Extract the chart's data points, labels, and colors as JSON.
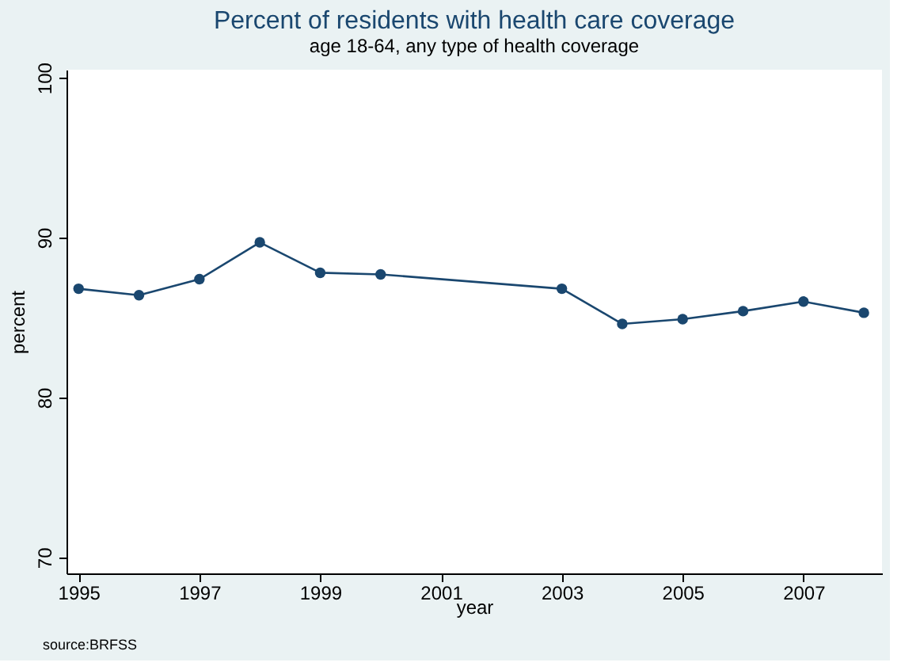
{
  "chart_data": {
    "type": "line",
    "title": "Percent of residents with health care coverage",
    "subtitle": "age 18-64, any type of health coverage",
    "xlabel": "year",
    "ylabel": "percent",
    "x": [
      1995,
      1996,
      1997,
      1998,
      1999,
      2000,
      2003,
      2004,
      2005,
      2006,
      2007,
      2008
    ],
    "series": [
      {
        "color": "#1a476f",
        "values": [
          86.8,
          86.4,
          87.4,
          89.7,
          87.8,
          87.7,
          86.8,
          84.6,
          84.9,
          85.4,
          86.0,
          85.3
        ]
      }
    ],
    "xlim": [
      1994.8,
      2008.3
    ],
    "xticks": [
      1995,
      1997,
      1999,
      2001,
      2003,
      2005,
      2007
    ],
    "ylim": [
      69,
      100.5
    ],
    "yticks": [
      70,
      80,
      90,
      100
    ],
    "marker": "circle",
    "line_style": "solid",
    "grid": false,
    "annotations": [
      "source:BRFSS"
    ]
  }
}
